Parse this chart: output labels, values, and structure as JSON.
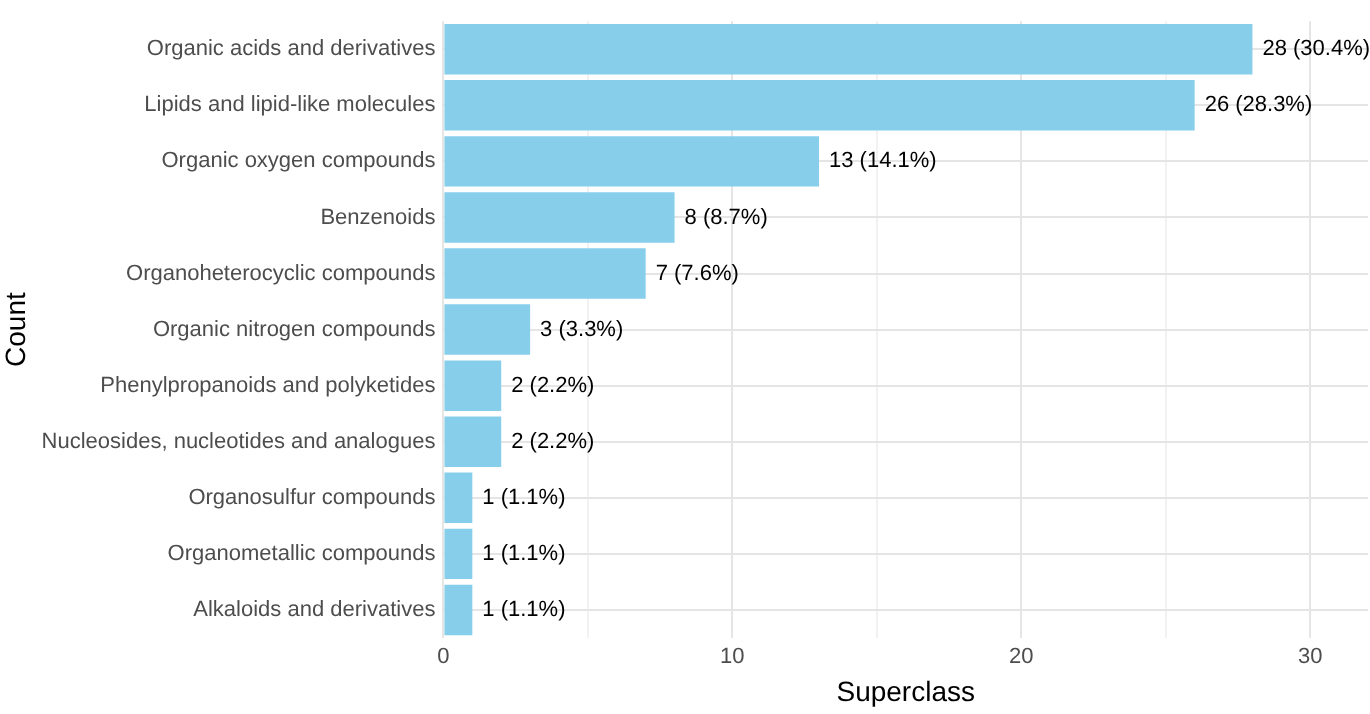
{
  "chart_data": {
    "type": "bar",
    "orientation": "horizontal",
    "xlabel": "Superclass",
    "ylabel": "Count",
    "categories": [
      "Organic acids and derivatives",
      "Lipids and lipid-like molecules",
      "Organic oxygen compounds",
      "Benzenoids",
      "Organoheterocyclic compounds",
      "Organic nitrogen compounds",
      "Phenylpropanoids and polyketides",
      "Nucleosides, nucleotides and analogues",
      "Organosulfur compounds",
      "Organometallic compounds",
      "Alkaloids and derivatives"
    ],
    "values": [
      28,
      26,
      13,
      8,
      7,
      3,
      2,
      2,
      1,
      1,
      1
    ],
    "value_labels": [
      "28 (30.4%)",
      "26 (28.3%)",
      "13 (14.1%)",
      "8 (8.7%)",
      "7 (7.6%)",
      "3 (3.3%)",
      "2 (2.2%)",
      "2 (2.2%)",
      "1 (1.1%)",
      "1 (1.1%)",
      "1 (1.1%)"
    ],
    "color": "#87ceeb",
    "xlim": [
      0,
      32
    ],
    "xticks": [
      0,
      {
        "value": 5,
        "label": null
      },
      10,
      {
        "value": 15,
        "label": null
      },
      20,
      {
        "value": 25,
        "label": null
      },
      30
    ],
    "grid": true,
    "legend": false
  }
}
